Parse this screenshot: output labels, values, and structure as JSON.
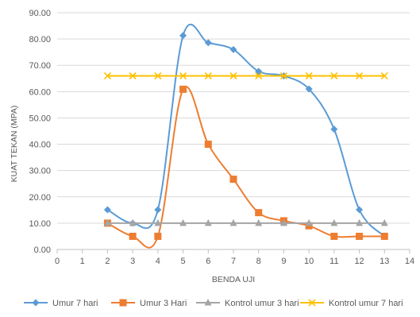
{
  "chart_data": {
    "type": "scatter",
    "xlabel": "BENDA UJI",
    "ylabel": "KUAT TEKAN (MPA)",
    "xlim": [
      0,
      14
    ],
    "ylim": [
      0,
      90
    ],
    "x_ticks": [
      "0",
      "1",
      "2",
      "3",
      "4",
      "5",
      "6",
      "7",
      "8",
      "9",
      "10",
      "11",
      "12",
      "13",
      "14"
    ],
    "y_ticks": [
      "0.00",
      "10.00",
      "20.00",
      "30.00",
      "40.00",
      "50.00",
      "60.00",
      "70.00",
      "80.00",
      "90.00"
    ],
    "grid": "horizontal",
    "legend_position": "bottom",
    "smooth_lines": true,
    "series": [
      {
        "name": "Umur 7 hari",
        "color": "#5B9BD5",
        "marker": "diamond",
        "x": [
          2,
          3,
          4,
          5,
          6,
          7,
          8,
          9,
          10,
          11,
          12,
          13
        ],
        "y": [
          15.1,
          10.0,
          15.1,
          81.3,
          78.6,
          76.0,
          67.7,
          66.0,
          61.0,
          45.7,
          15.1,
          5.0
        ]
      },
      {
        "name": "Umur 3 Hari",
        "color": "#ED7D31",
        "marker": "square",
        "x": [
          2,
          3,
          4,
          5,
          6,
          7,
          8,
          9,
          10,
          11,
          12,
          13
        ],
        "y": [
          10.0,
          5.0,
          5.0,
          60.9,
          40.0,
          26.7,
          14.0,
          10.9,
          9.0,
          5.0,
          5.0,
          5.0
        ]
      },
      {
        "name": "Kontrol umur 3 hari",
        "color": "#A5A5A5",
        "marker": "triangle",
        "x": [
          2,
          3,
          4,
          5,
          6,
          7,
          8,
          9,
          10,
          11,
          12,
          13
        ],
        "y": [
          10.0,
          10.0,
          10.0,
          10.0,
          10.0,
          10.0,
          10.0,
          10.0,
          10.0,
          10.0,
          10.0,
          10.0
        ]
      },
      {
        "name": "Kontrol umur 7 hari",
        "color": "#FFC000",
        "marker": "x",
        "x": [
          2,
          3,
          4,
          5,
          6,
          7,
          8,
          9,
          10,
          11,
          12,
          13
        ],
        "y": [
          66.0,
          66.0,
          66.0,
          66.0,
          66.0,
          66.0,
          66.0,
          66.0,
          66.0,
          66.0,
          66.0,
          66.0
        ]
      }
    ]
  }
}
